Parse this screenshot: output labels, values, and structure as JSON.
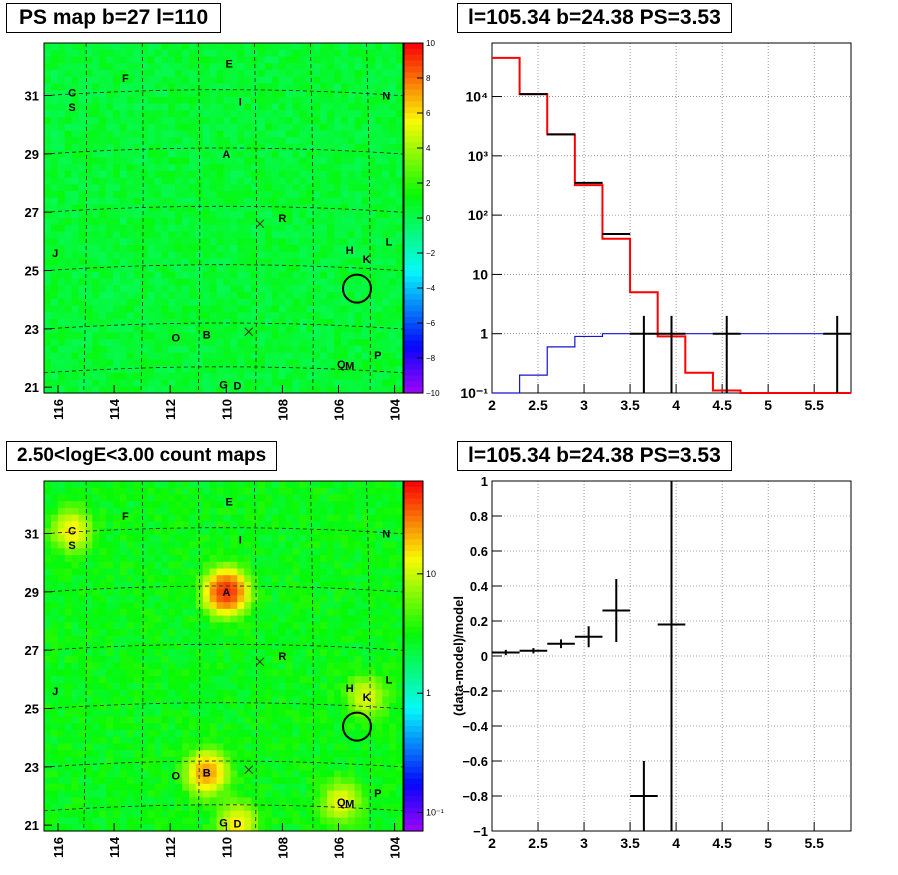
{
  "panels": {
    "ps_map": {
      "title": "PS map b=27 l=110",
      "x_ticks": [
        "116",
        "114",
        "112",
        "110",
        "108",
        "106",
        "104"
      ],
      "y_ticks": [
        "31",
        "29",
        "27",
        "25",
        "23",
        "21"
      ],
      "colorbar_ticks": [
        "10",
        "8",
        "6",
        "4",
        "2",
        "0",
        "−2",
        "−4",
        "−6",
        "−8",
        "−10"
      ]
    },
    "count_map": {
      "title": "2.50<logE<3.00 count maps",
      "x_ticks": [
        "116",
        "114",
        "112",
        "110",
        "108",
        "106",
        "104"
      ],
      "y_ticks": [
        "31",
        "29",
        "27",
        "25",
        "23",
        "21"
      ],
      "colorbar_ticks": [
        "10",
        "1",
        "10⁻¹"
      ]
    },
    "spectrum": {
      "title": "l=105.34 b=24.38 PS=3.53",
      "x_ticks": [
        "2",
        "2.5",
        "3",
        "3.5",
        "4",
        "4.5",
        "5",
        "5.5"
      ],
      "y_ticks": [
        "10⁻¹",
        "1",
        "10",
        "10²",
        "10³",
        "10⁴"
      ]
    },
    "residual": {
      "title": "l=105.34 b=24.38 PS=3.53",
      "ylabel": "(data-model)/model",
      "x_ticks": [
        "2",
        "2.5",
        "3",
        "3.5",
        "4",
        "4.5",
        "5",
        "5.5"
      ],
      "y_ticks": [
        "1",
        "0.8",
        "0.6",
        "0.4",
        "0.2",
        "0",
        "−0.2",
        "−0.4",
        "−0.6",
        "−0.8",
        "−1"
      ]
    }
  },
  "sources": [
    {
      "label": "F",
      "l": 113.6,
      "b": 31.6
    },
    {
      "label": "E",
      "l": 109.9,
      "b": 32.1
    },
    {
      "label": "C",
      "l": 115.5,
      "b": 31.1
    },
    {
      "label": "S",
      "l": 115.5,
      "b": 30.6
    },
    {
      "label": "I",
      "l": 109.5,
      "b": 30.8
    },
    {
      "label": "N",
      "l": 104.3,
      "b": 31.0
    },
    {
      "label": "A",
      "l": 110.0,
      "b": 29.0
    },
    {
      "label": "R",
      "l": 108.0,
      "b": 26.8
    },
    {
      "label": "J",
      "l": 116.1,
      "b": 25.6
    },
    {
      "label": "L",
      "l": 104.2,
      "b": 26.0
    },
    {
      "label": "H",
      "l": 105.6,
      "b": 25.7
    },
    {
      "label": "K",
      "l": 105.0,
      "b": 25.4
    },
    {
      "label": "O",
      "l": 111.8,
      "b": 22.7
    },
    {
      "label": "B",
      "l": 110.7,
      "b": 22.8
    },
    {
      "label": "Q",
      "l": 105.9,
      "b": 21.8
    },
    {
      "label": "M",
      "l": 105.6,
      "b": 21.75
    },
    {
      "label": "P",
      "l": 104.6,
      "b": 22.1
    },
    {
      "label": "G",
      "l": 110.1,
      "b": 21.1
    },
    {
      "label": "D",
      "l": 109.6,
      "b": 21.05
    }
  ],
  "marked_position": {
    "l": 105.34,
    "b": 24.38
  },
  "chart_data": [
    {
      "type": "heatmap",
      "title": "PS map b=27 l=110",
      "xlabel": "",
      "ylabel": "",
      "xlim": [
        116.5,
        103.7
      ],
      "ylim": [
        20.8,
        32.8
      ],
      "zlim": [
        -10,
        10
      ],
      "z_scale": "linear",
      "hotspots": [],
      "background": 0.5
    },
    {
      "type": "heatmap",
      "title": "2.50<logE<3.00 count maps",
      "xlabel": "",
      "ylabel": "",
      "xlim": [
        116.5,
        103.7
      ],
      "ylim": [
        20.8,
        32.8
      ],
      "zlim": [
        0.07,
        60
      ],
      "z_scale": "log",
      "background": 3,
      "hotspots": [
        {
          "l": 110.0,
          "b": 29.0,
          "peak": 45
        },
        {
          "l": 110.7,
          "b": 22.8,
          "peak": 22
        },
        {
          "l": 115.5,
          "b": 31.1,
          "peak": 12
        },
        {
          "l": 105.0,
          "b": 25.4,
          "peak": 9
        },
        {
          "l": 105.9,
          "b": 21.8,
          "peak": 10
        },
        {
          "l": 109.6,
          "b": 21.05,
          "peak": 12
        }
      ]
    },
    {
      "type": "line",
      "title": "l=105.34 b=24.38 PS=3.53",
      "xlabel": "",
      "ylabel": "",
      "xlim": [
        2,
        5.9
      ],
      "ylim": [
        0.1,
        80000
      ],
      "y_scale": "log",
      "grid": true,
      "bin_edges": [
        2.0,
        2.3,
        2.6,
        2.9,
        3.2,
        3.5,
        3.8,
        4.1,
        4.4,
        4.7,
        5.0,
        5.3,
        5.6,
        5.9
      ],
      "series": [
        {
          "color": "#ff0000",
          "values": [
            45000,
            11000,
            2300,
            320,
            40,
            5,
            0.9,
            0.22,
            0.11,
            0.1,
            0.1,
            0.1,
            0.1
          ]
        },
        {
          "color": "#1515c8",
          "values": [
            0.1,
            0.2,
            0.6,
            0.9,
            1,
            1,
            1,
            1,
            1,
            1,
            1,
            1,
            1
          ]
        },
        {
          "color": "#000000",
          "points": [
            {
              "x": 2.45,
              "y": 11000
            },
            {
              "x": 2.75,
              "y": 2300
            },
            {
              "x": 3.05,
              "y": 350
            },
            {
              "x": 3.35,
              "y": 48
            },
            {
              "x": 3.65,
              "y": 1,
              "err_to": 0.1
            },
            {
              "x": 3.95,
              "y": 1,
              "err_to": 0.1
            },
            {
              "x": 4.55,
              "y": 1,
              "err_to": 0.1
            },
            {
              "x": 5.75,
              "y": 1,
              "err_to": 0.1
            }
          ]
        }
      ]
    },
    {
      "type": "scatter",
      "title": "l=105.34 b=24.38 PS=3.53",
      "xlabel": "",
      "ylabel": "(data-model)/model",
      "xlim": [
        2,
        5.9
      ],
      "ylim": [
        -1,
        1
      ],
      "grid": true,
      "points": [
        {
          "x": 2.15,
          "y": 0.02,
          "xerr": 0.15,
          "yerr": 0.015
        },
        {
          "x": 2.45,
          "y": 0.03,
          "xerr": 0.15,
          "yerr": 0.015
        },
        {
          "x": 2.75,
          "y": 0.07,
          "xerr": 0.15,
          "yerr": 0.025
        },
        {
          "x": 3.05,
          "y": 0.11,
          "xerr": 0.15,
          "yerr": 0.06
        },
        {
          "x": 3.35,
          "y": 0.26,
          "xerr": 0.15,
          "yerr": 0.18
        },
        {
          "x": 3.65,
          "y": -0.8,
          "xerr": 0.15,
          "yerr": 0.2
        },
        {
          "x": 3.95,
          "y": 0.18,
          "xerr": 0.15,
          "yerr": 1.2
        }
      ]
    }
  ]
}
